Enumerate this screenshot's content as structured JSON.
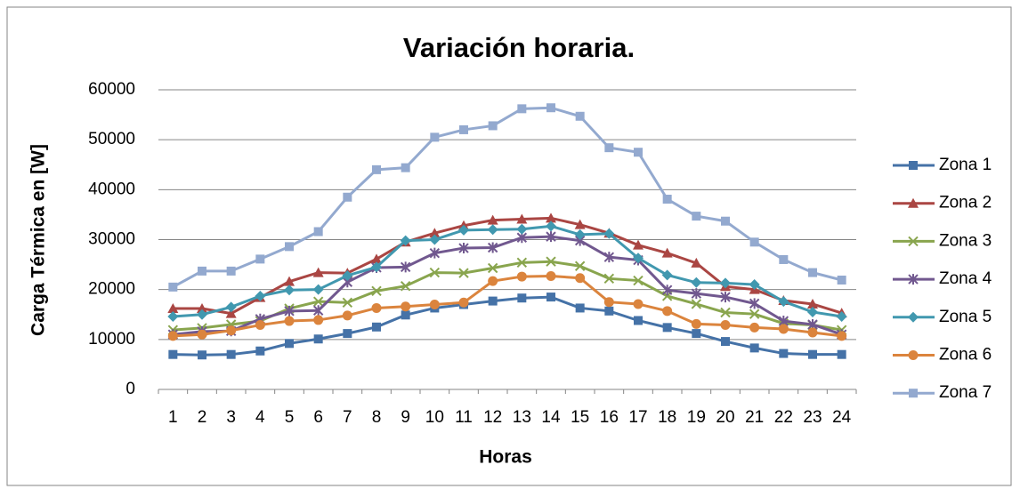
{
  "chart_data": {
    "type": "line",
    "title": "Variación horaria.",
    "x_label": "Horas",
    "y_label": "Carga Térmica en [W]",
    "categories": [
      "1",
      "2",
      "3",
      "4",
      "5",
      "6",
      "7",
      "8",
      "9",
      "10",
      "11",
      "12",
      "13",
      "14",
      "15",
      "16",
      "17",
      "18",
      "19",
      "20",
      "21",
      "22",
      "23",
      "24"
    ],
    "ylim": [
      0,
      60000
    ],
    "yticks": [
      0,
      10000,
      20000,
      30000,
      40000,
      50000,
      60000
    ],
    "grid": true,
    "legend": "right",
    "series": [
      {
        "name": "Zona 1",
        "color": "#4572a7",
        "marker": "square",
        "values": [
          7000,
          6900,
          7000,
          7700,
          9200,
          10100,
          11200,
          12500,
          14900,
          16300,
          17000,
          17700,
          18300,
          18500,
          16300,
          15700,
          13800,
          12400,
          11200,
          9600,
          8300,
          7200,
          7000,
          7000
        ]
      },
      {
        "name": "Zona 2",
        "color": "#aa4643",
        "marker": "triangle",
        "values": [
          16200,
          16200,
          15200,
          18400,
          21600,
          23400,
          23300,
          26100,
          29500,
          31300,
          32800,
          33900,
          34100,
          34300,
          33000,
          31300,
          28900,
          27300,
          25300,
          20600,
          20000,
          17800,
          17100,
          15300
        ]
      },
      {
        "name": "Zona 3",
        "color": "#89a54e",
        "marker": "x",
        "values": [
          11900,
          12300,
          13000,
          13700,
          16200,
          17600,
          17400,
          19700,
          20700,
          23400,
          23300,
          24300,
          25400,
          25600,
          24700,
          22200,
          21800,
          18700,
          17100,
          15400,
          15100,
          13200,
          12900,
          11900
        ]
      },
      {
        "name": "Zona 4",
        "color": "#71588f",
        "marker": "star",
        "values": [
          11000,
          11600,
          11700,
          14100,
          15700,
          15800,
          21500,
          24400,
          24500,
          27300,
          28300,
          28400,
          30400,
          30600,
          29800,
          26500,
          25900,
          19900,
          19200,
          18500,
          17200,
          13700,
          13000,
          11000
        ]
      },
      {
        "name": "Zona 5",
        "color": "#4198af",
        "marker": "diamond",
        "values": [
          14600,
          15000,
          16500,
          18700,
          19900,
          20000,
          22800,
          24500,
          29800,
          30000,
          31900,
          32000,
          32100,
          32700,
          31000,
          31200,
          26300,
          22900,
          21400,
          21300,
          21000,
          17600,
          15500,
          14600
        ]
      },
      {
        "name": "Zona 6",
        "color": "#db843d",
        "marker": "circle",
        "values": [
          10700,
          11000,
          11800,
          12900,
          13700,
          13900,
          14800,
          16300,
          16600,
          17000,
          17400,
          21700,
          22600,
          22700,
          22300,
          17500,
          17100,
          15700,
          13100,
          12900,
          12400,
          12100,
          11400,
          10700
        ]
      },
      {
        "name": "Zona 7",
        "color": "#93a9cf",
        "marker": "square",
        "values": [
          20500,
          23700,
          23700,
          26100,
          28600,
          31600,
          38500,
          44000,
          44400,
          50500,
          52000,
          52800,
          56200,
          56400,
          54700,
          48400,
          47500,
          38100,
          34700,
          33700,
          29500,
          26000,
          23400,
          21900
        ]
      }
    ]
  }
}
